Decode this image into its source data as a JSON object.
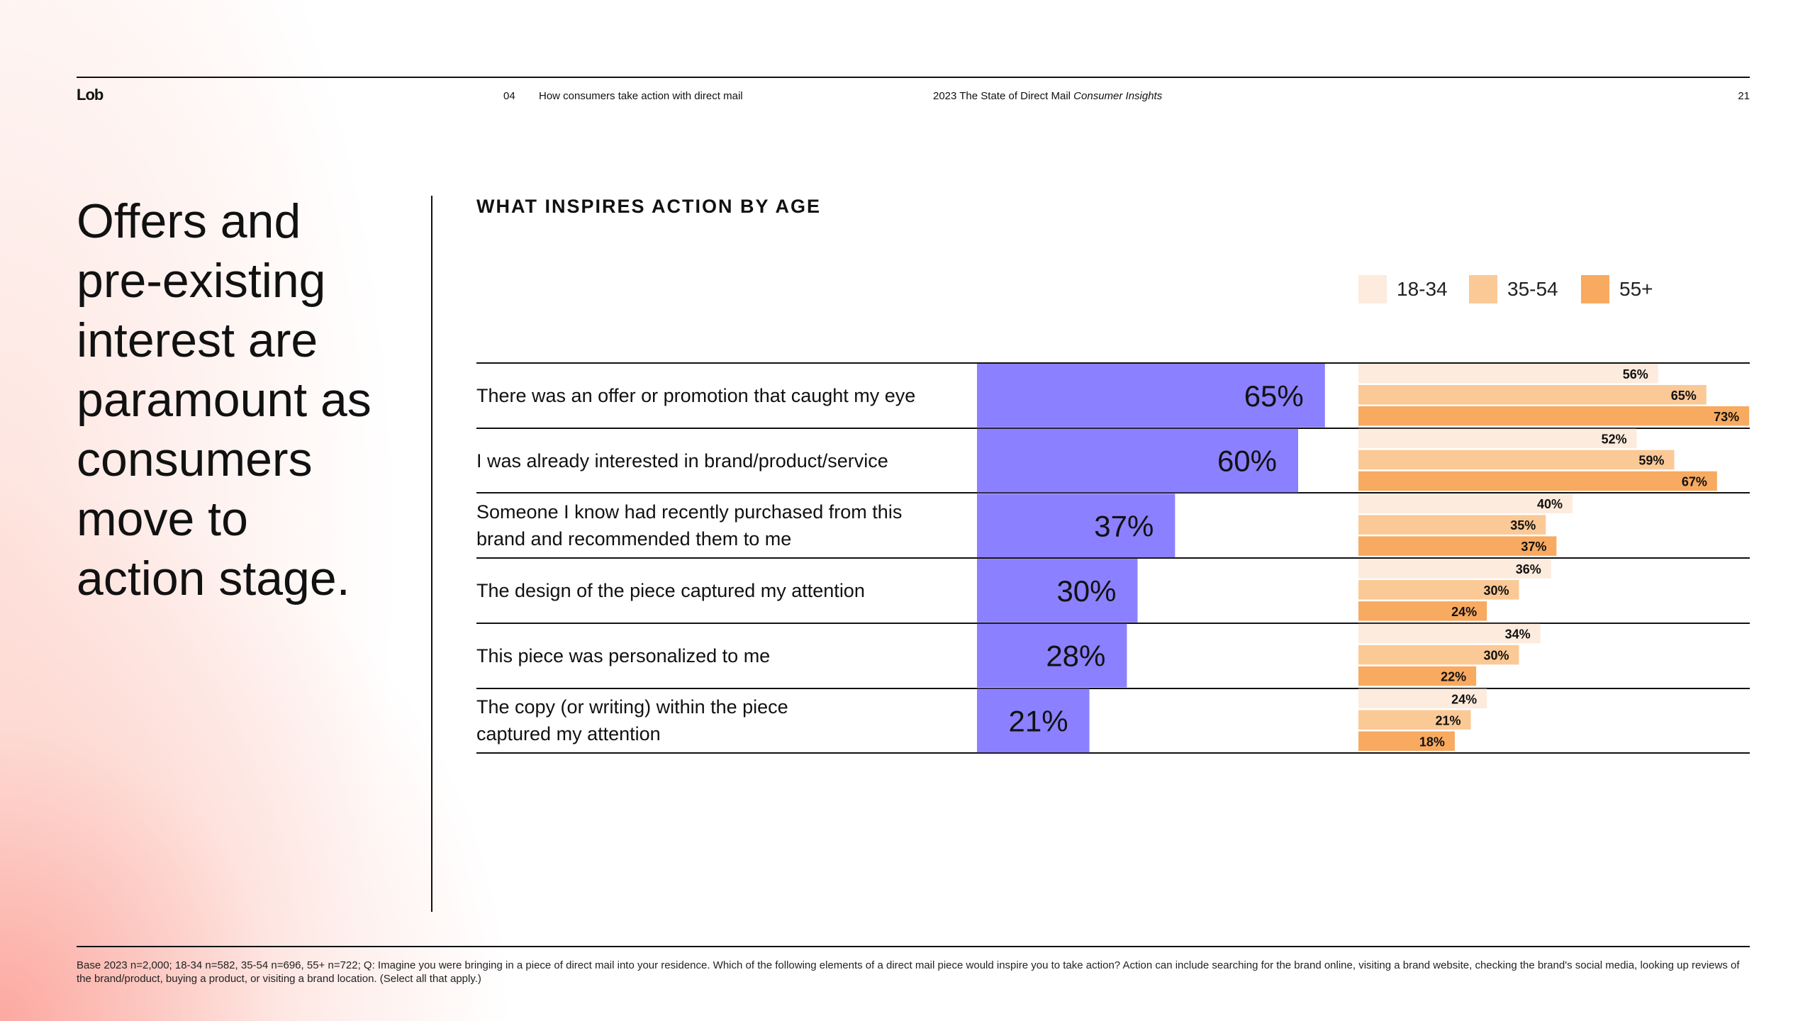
{
  "header": {
    "logo": "Lob",
    "section_number": "04",
    "section_title": "How consumers take action with direct mail",
    "report_title_regular": "2023 The State of Direct Mail",
    "report_title_italic": "Consumer Insights",
    "page_number": "21"
  },
  "headline": [
    "Offers and",
    "pre-existing",
    "interest are",
    "paramount as",
    "consumers",
    "move to",
    "action stage."
  ],
  "chart_title": "WHAT INSPIRES ACTION BY AGE",
  "colors": {
    "total_bar": "#8B80FF",
    "age_18_34": "#FDEBDD",
    "age_35_54": "#FBC996",
    "age_55_plus": "#F8AA60"
  },
  "chart_data": {
    "type": "bar",
    "title": "WHAT INSPIRES ACTION BY AGE",
    "value_format": "percent",
    "xlim": [
      0,
      100
    ],
    "categories": [
      [
        "There was an offer or promotion that caught my eye"
      ],
      [
        "I was already interested in brand/product/service"
      ],
      [
        "Someone I know had recently purchased from this",
        "brand and recommended them to me"
      ],
      [
        "The design of the piece captured my attention"
      ],
      [
        "This piece was personalized to me"
      ],
      [
        "The copy (or writing) within the piece",
        "captured my attention"
      ]
    ],
    "total": [
      65,
      60,
      37,
      30,
      28,
      21
    ],
    "series": [
      {
        "name": "18-34",
        "values": [
          56,
          52,
          40,
          36,
          34,
          24
        ]
      },
      {
        "name": "35-54",
        "values": [
          65,
          59,
          35,
          30,
          30,
          21
        ]
      },
      {
        "name": "55+",
        "values": [
          73,
          67,
          37,
          24,
          22,
          18
        ]
      }
    ]
  },
  "footer": "Base 2023 n=2,000; 18-34 n=582, 35-54 n=696, 55+ n=722; Q: Imagine you were bringing in a piece of direct mail into your residence. Which of the following elements of a direct mail piece would inspire you to take action? Action can include searching for the brand online, visiting a brand website, checking the brand's social media, looking up reviews of the brand/product, buying a product, or visiting a brand location. (Select all that apply.)"
}
